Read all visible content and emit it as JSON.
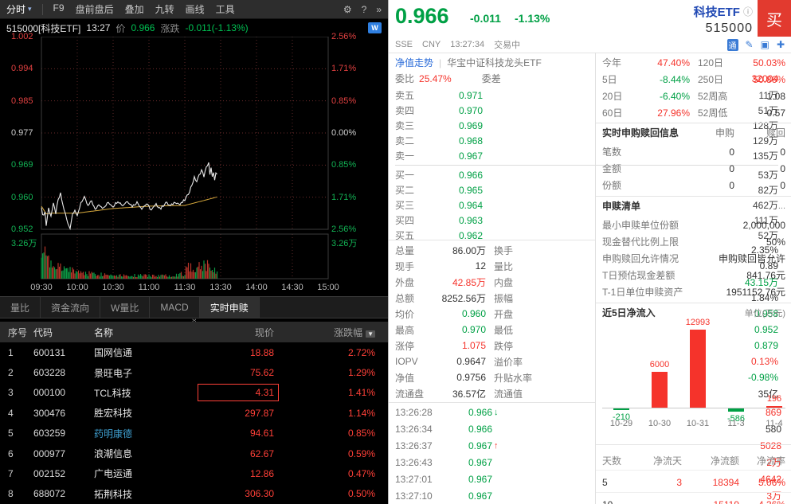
{
  "colors": {
    "red": "#f5332b",
    "green": "#00a045",
    "dark_red": "#ff4038",
    "dark_green": "#00c052",
    "link": "#2b6cd9",
    "navy": "#2149b4",
    "buy_btn": "#e23a2f",
    "chart_line": "#e8e8e8",
    "avg_line": "#d7a93c",
    "vol_up": "#b8352a",
    "vol_down": "#0c9a44"
  },
  "icons": {
    "dropdown_caret": "▾",
    "gear": "⚙",
    "help": "?",
    "more": "»",
    "wp": "W",
    "sort_down": "▼",
    "collapse": "«",
    "info": "ⓘ",
    "tong": "通",
    "pencil": "✎",
    "camera": "▣",
    "plus": "✚",
    "up_arrow": "↑",
    "down_arrow": "↓",
    "dots": "..."
  },
  "toolbar": {
    "period": "分时",
    "items": [
      "F9",
      "盘前盘后",
      "叠加",
      "九转",
      "画线",
      "工具"
    ]
  },
  "chart_header": {
    "code": "515000[科技ETF]",
    "time": "13:27",
    "price_label": "价",
    "price": "0.966",
    "change_label": "涨跌",
    "change": "-0.011(-1.13%)"
  },
  "chart_data": {
    "type": "line",
    "x_ticks": [
      "09:30",
      "10:00",
      "10:30",
      "11:00",
      "11:30",
      "13:30",
      "14:00",
      "14:30",
      "15:00"
    ],
    "y_axis_prices": [
      "1.002",
      "0.994",
      "0.985",
      "0.977",
      "0.969",
      "0.960",
      "0.952"
    ],
    "y_axis_pcts": [
      "2.56%",
      "1.71%",
      "0.85%",
      "0.00%",
      "0.85%",
      "1.71%",
      "2.56%"
    ],
    "vol_axis_label": "3.26万",
    "y_max": 1.002,
    "y_min": 0.952,
    "prev_close": 0.977,
    "minutes_total": 240,
    "minutes_elapsed": 147,
    "price_anchors": [
      [
        0,
        0.958
      ],
      [
        1,
        0.9555
      ],
      [
        3,
        0.9565
      ],
      [
        4,
        0.953
      ],
      [
        6,
        0.9575
      ],
      [
        8,
        0.9555
      ],
      [
        10,
        0.9585
      ],
      [
        12,
        0.9562
      ],
      [
        14,
        0.9595
      ],
      [
        16,
        0.9612
      ],
      [
        18,
        0.9582
      ],
      [
        20,
        0.956
      ],
      [
        22,
        0.9535
      ],
      [
        24,
        0.9524
      ],
      [
        26,
        0.956
      ],
      [
        28,
        0.9572
      ],
      [
        30,
        0.9552
      ],
      [
        33,
        0.959
      ],
      [
        36,
        0.9602
      ],
      [
        39,
        0.958
      ],
      [
        42,
        0.9594
      ],
      [
        45,
        0.957
      ],
      [
        48,
        0.9586
      ],
      [
        52,
        0.9574
      ],
      [
        56,
        0.959
      ],
      [
        60,
        0.958
      ],
      [
        64,
        0.9594
      ],
      [
        68,
        0.9582
      ],
      [
        72,
        0.9594
      ],
      [
        76,
        0.958
      ],
      [
        80,
        0.959
      ],
      [
        84,
        0.9575
      ],
      [
        88,
        0.9586
      ],
      [
        92,
        0.957
      ],
      [
        96,
        0.9584
      ],
      [
        100,
        0.9574
      ],
      [
        104,
        0.959
      ],
      [
        108,
        0.958
      ],
      [
        112,
        0.9592
      ],
      [
        116,
        0.9584
      ],
      [
        120,
        0.9596
      ],
      [
        122,
        0.9606
      ],
      [
        124,
        0.962
      ],
      [
        126,
        0.9636
      ],
      [
        128,
        0.9654
      ],
      [
        130,
        0.9644
      ],
      [
        132,
        0.966
      ],
      [
        134,
        0.9674
      ],
      [
        136,
        0.9658
      ],
      [
        138,
        0.968
      ],
      [
        140,
        0.9694
      ],
      [
        141,
        0.966
      ],
      [
        142,
        0.9678
      ],
      [
        143,
        0.9654
      ],
      [
        144,
        0.967
      ],
      [
        145,
        0.9646
      ],
      [
        146,
        0.9664
      ],
      [
        147,
        0.966
      ]
    ],
    "avg_anchors": [
      [
        0,
        0.958
      ],
      [
        4,
        0.956
      ],
      [
        10,
        0.9562
      ],
      [
        20,
        0.9562
      ],
      [
        30,
        0.9562
      ],
      [
        60,
        0.9574
      ],
      [
        90,
        0.958
      ],
      [
        120,
        0.9582
      ],
      [
        130,
        0.959
      ],
      [
        140,
        0.9598
      ],
      [
        147,
        0.9604
      ]
    ],
    "volume_envelope": [
      [
        0,
        0.95
      ],
      [
        2,
        0.8
      ],
      [
        5,
        0.6
      ],
      [
        10,
        0.45
      ],
      [
        15,
        0.35
      ],
      [
        25,
        0.3
      ],
      [
        35,
        0.2
      ],
      [
        50,
        0.15
      ],
      [
        70,
        0.12
      ],
      [
        90,
        0.1
      ],
      [
        110,
        0.12
      ],
      [
        120,
        0.18
      ],
      [
        122,
        0.38
      ],
      [
        126,
        0.42
      ],
      [
        132,
        0.45
      ],
      [
        138,
        0.5
      ],
      [
        142,
        0.36
      ],
      [
        147,
        0.3
      ]
    ]
  },
  "tabs": {
    "items": [
      "量比",
      "资金流向",
      "W量比",
      "MACD",
      "实时申赎"
    ],
    "active": "实时申赎"
  },
  "holdings": {
    "headers": [
      "序号",
      "代码",
      "名称",
      "现价",
      "涨跌幅"
    ],
    "rows": [
      {
        "idx": "1",
        "code": "600131",
        "name": "国网信通",
        "price": "18.88",
        "chg": "2.72%"
      },
      {
        "idx": "2",
        "code": "603228",
        "name": "景旺电子",
        "price": "75.62",
        "chg": "1.29%"
      },
      {
        "idx": "3",
        "code": "000100",
        "name": "TCL科技",
        "price": "4.31",
        "chg": "1.41%",
        "selected": true
      },
      {
        "idx": "4",
        "code": "300476",
        "name": "胜宏科技",
        "price": "297.87",
        "chg": "1.14%"
      },
      {
        "idx": "5",
        "code": "603259",
        "name": "药明康德",
        "price": "94.61",
        "chg": "0.85%",
        "name_highlight": true
      },
      {
        "idx": "6",
        "code": "000977",
        "name": "浪潮信息",
        "price": "62.67",
        "chg": "0.59%"
      },
      {
        "idx": "7",
        "code": "002152",
        "name": "广电运通",
        "price": "12.86",
        "chg": "0.47%"
      },
      {
        "idx": "8",
        "code": "688072",
        "name": "拓荆科技",
        "price": "306.30",
        "chg": "0.50%"
      }
    ]
  },
  "quote": {
    "price": "0.966",
    "change": "-0.011",
    "change_pct": "-1.13%",
    "name": "科技ETF",
    "code": "515000",
    "buy_label": "买",
    "exchange": "SSE",
    "currency": "CNY",
    "time": "13:27:34",
    "status": "交易中",
    "nav_link": "净值走势",
    "fund_name": "华宝中证科技龙头ETF",
    "weibi_label": "委比",
    "weibi": "25.47%",
    "weicha_label": "委差",
    "weicha": "32004"
  },
  "order_book": {
    "sell": [
      [
        "卖五",
        "0.971",
        "11万"
      ],
      [
        "卖四",
        "0.970",
        "51万"
      ],
      [
        "卖三",
        "0.969",
        "128万"
      ],
      [
        "卖二",
        "0.968",
        "129万"
      ],
      [
        "卖一",
        "0.967",
        "135万"
      ]
    ],
    "buy": [
      [
        "买一",
        "0.966",
        "53万"
      ],
      [
        "买二",
        "0.965",
        "82万"
      ],
      [
        "买三",
        "0.964",
        "462万"
      ],
      [
        "买四",
        "0.963",
        "111万"
      ],
      [
        "买五",
        "0.962",
        "52万"
      ]
    ]
  },
  "stats": [
    {
      "l1": "总量",
      "v1": "86.00万",
      "c1": "dark",
      "l2": "换手",
      "v2": "2.35%",
      "c2": "dark"
    },
    {
      "l1": "现手",
      "v1": "12",
      "c1": "dark",
      "l2": "量比",
      "v2": "0.89",
      "c2": "dark"
    },
    {
      "l1": "外盘",
      "v1": "42.85万",
      "c1": "red",
      "l2": "内盘",
      "v2": "43.15万",
      "c2": "green"
    },
    {
      "l1": "总额",
      "v1": "8252.56万",
      "c1": "dark",
      "l2": "振幅",
      "v2": "1.84%",
      "c2": "dark"
    },
    {
      "l1": "均价",
      "v1": "0.960",
      "c1": "green",
      "l2": "开盘",
      "v2": "0.958",
      "c2": "green"
    },
    {
      "l1": "最高",
      "v1": "0.970",
      "c1": "green",
      "l2": "最低",
      "v2": "0.952",
      "c2": "green"
    },
    {
      "l1": "涨停",
      "v1": "1.075",
      "c1": "red",
      "l2": "跌停",
      "v2": "0.879",
      "c2": "green"
    },
    {
      "l1": "IOPV",
      "v1": "0.9647",
      "c1": "dark",
      "l2": "溢价率",
      "v2": "0.13%",
      "c2": "red"
    },
    {
      "l1": "净值",
      "v1": "0.9756",
      "c1": "dark",
      "l2": "升贴水率",
      "v2": "-0.98%",
      "c2": "green"
    },
    {
      "l1": "流通盘",
      "v1": "36.57亿",
      "c1": "dark",
      "l2": "流通值",
      "v2": "35亿",
      "c2": "dark"
    }
  ],
  "ticks": [
    {
      "time": "13:26:28",
      "price": "0.966",
      "dir": "down",
      "vol": "869",
      "vol_color": "red"
    },
    {
      "time": "13:26:34",
      "price": "0.966",
      "dir": "",
      "vol": "580",
      "vol_color": "dark"
    },
    {
      "time": "13:26:37",
      "price": "0.967",
      "dir": "up",
      "vol": "5028",
      "vol_color": "red"
    },
    {
      "time": "13:26:43",
      "price": "0.967",
      "dir": "",
      "vol": "2万",
      "vol_color": "red"
    },
    {
      "time": "13:27:01",
      "price": "0.967",
      "dir": "",
      "vol": "4642",
      "vol_color": "red"
    },
    {
      "time": "13:27:10",
      "price": "0.967",
      "dir": "",
      "vol": "3万",
      "vol_color": "red"
    }
  ],
  "performance": [
    {
      "l1": "今年",
      "v1": "47.40%",
      "c1": "red",
      "l2": "120日",
      "v2": "50.03%",
      "c2": "red"
    },
    {
      "l1": "5日",
      "v1": "-8.44%",
      "c1": "green",
      "l2": "250日",
      "v2": "50.86%",
      "c2": "red"
    },
    {
      "l1": "20日",
      "v1": "-6.40%",
      "c1": "green",
      "l2": "52周高",
      "v2": "1.08",
      "c2": "dark"
    },
    {
      "l1": "60日",
      "v1": "27.96%",
      "c1": "red",
      "l2": "52周低",
      "v2": "0.57",
      "c2": "dark"
    }
  ],
  "subscription": {
    "title": "实时申购赎回信息",
    "col1": "申购",
    "col2": "赎回",
    "rows": [
      {
        "l": "笔数",
        "v1": "0",
        "v2": "0"
      },
      {
        "l": "金额",
        "v1": "0",
        "v2": "0"
      },
      {
        "l": "份额",
        "v1": "0",
        "v2": "0"
      }
    ]
  },
  "redeem": {
    "title": "申赎清单",
    "more": "...",
    "rows": [
      {
        "l": "最小申赎单位份额",
        "v": "2,000,000"
      },
      {
        "l": "现金替代比例上限",
        "v": "50%"
      },
      {
        "l": "申购赎回允许情况",
        "v": "申购赎回皆允许"
      },
      {
        "l": "T日预估现金差额",
        "v": "841.76元"
      },
      {
        "l": "T-1日单位申赎资产",
        "v": "1951152.76元"
      }
    ]
  },
  "flow": {
    "title": "近5日净流入",
    "unit": "单位(万元)",
    "chart": {
      "type": "bar",
      "categories": [
        "10-29",
        "10-30",
        "10-31",
        "11-3",
        "11-4"
      ],
      "values": [
        -210,
        6000,
        12993,
        -586,
        196
      ]
    },
    "table": {
      "headers": [
        "天数",
        "净流天",
        "净流额",
        "净流率"
      ],
      "rows": [
        {
          "days": "5",
          "net_days": "3",
          "net_amt": "18394",
          "net_rate": "5.06%"
        },
        {
          "days": "10",
          "net_days": "",
          "net_amt": "15119",
          "net_rate": "4.36%"
        }
      ]
    }
  }
}
